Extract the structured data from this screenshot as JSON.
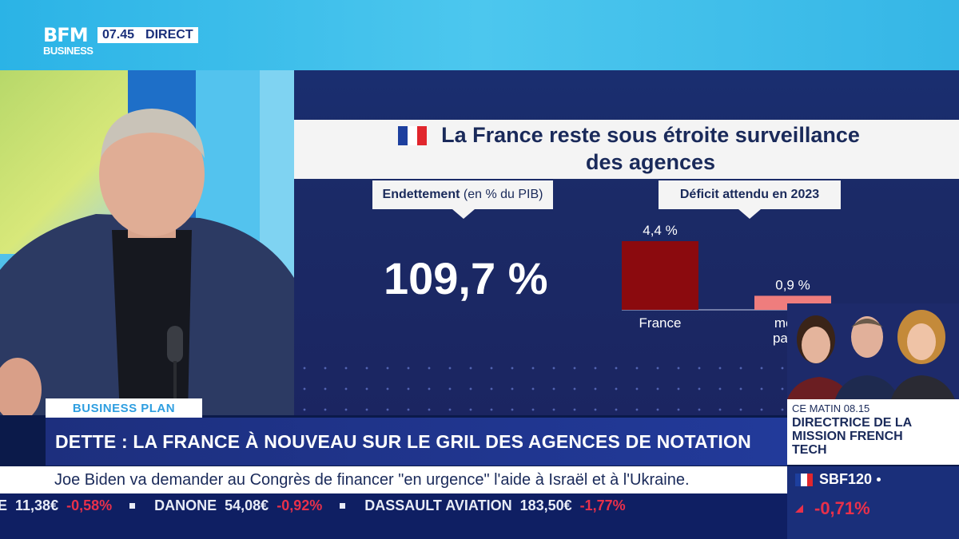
{
  "broadcast": {
    "logo_main": "BFM",
    "logo_sub": "BUSINESS",
    "time": "07.45",
    "live_label": "DIRECT"
  },
  "graphic": {
    "title": "La France reste sous étroite surveillance des agences",
    "debt_label_bold": "Endettement",
    "debt_label_rest": " (en % du PIB)",
    "debt_value": "109,7 %",
    "deficit_label": "Déficit attendu en 2023",
    "flag_colors": [
      "#1d3f9e",
      "#ffffff",
      "#e1262d"
    ]
  },
  "chart_data": {
    "type": "bar",
    "title": "Déficit attendu en 2023",
    "categories": [
      "France",
      "médiane pays n"
    ],
    "category_lines": [
      [
        "France"
      ],
      [
        "média",
        "pays n"
      ]
    ],
    "values": [
      4.4,
      0.9
    ],
    "value_labels": [
      "4,4 %",
      "0,9 %"
    ],
    "colors": [
      "#8b0a0e",
      "#ef7d7d"
    ],
    "ylim": [
      0,
      4.4
    ]
  },
  "lower_third": {
    "segment": "BUSINESS PLAN",
    "headline": "DETTE : LA FRANCE À NOUVEAU SUR LE GRIL DES AGENCES DE NOTATION",
    "news": "Joe Biden va demander au Congrès de financer \"en urgence\" l'aide à Israël et à l'Ukraine."
  },
  "ticker": [
    {
      "name": "OLE",
      "price": "11,38€",
      "change": "-0,58%"
    },
    {
      "name": "DANONE",
      "price": "54,08€",
      "change": "-0,92%"
    },
    {
      "name": "DASSAULT AVIATION",
      "price": "183,50€",
      "change": "-1,77%"
    }
  ],
  "promo": {
    "time": "CE MATIN 08.15",
    "title": "DIRECTRICE DE LA MISSION FRENCH TECH"
  },
  "index": {
    "name": "SBF120",
    "change": "-0,71%",
    "trend": "down"
  }
}
